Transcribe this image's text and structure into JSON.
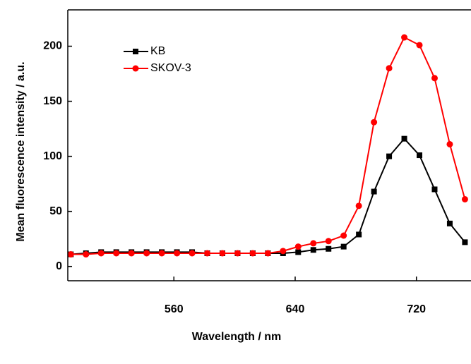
{
  "chart_data": {
    "type": "line",
    "xlabel": "Wavelength / nm",
    "ylabel": "Mean fluorescence intensity / a.u.",
    "x": [
      492,
      502,
      512,
      522,
      532,
      542,
      552,
      562,
      572,
      582,
      592,
      602,
      612,
      622,
      632,
      642,
      652,
      662,
      672,
      682,
      692,
      702,
      712,
      722,
      732,
      742,
      752
    ],
    "series": [
      {
        "name": "KB",
        "color": "#000000",
        "marker": "square",
        "values": [
          11,
          12,
          13,
          13,
          13,
          13,
          13,
          13,
          13,
          12,
          12,
          12,
          12,
          12,
          12,
          13,
          15,
          16,
          18,
          29,
          68,
          100,
          116,
          101,
          70,
          39,
          22
        ]
      },
      {
        "name": "SKOV-3",
        "color": "#ff0000",
        "marker": "circle",
        "values": [
          11,
          11,
          12,
          12,
          12,
          12,
          12,
          12,
          12,
          12,
          12,
          12,
          12,
          12,
          14,
          18,
          21,
          23,
          28,
          55,
          131,
          180,
          208,
          201,
          171,
          111,
          61
        ]
      }
    ],
    "xlim": [
      490,
      756
    ],
    "xticks": [
      560,
      640,
      720
    ],
    "ylim": [
      -13,
      233
    ],
    "yticks": [
      0,
      50,
      100,
      150,
      200
    ],
    "legend": "upper left"
  }
}
